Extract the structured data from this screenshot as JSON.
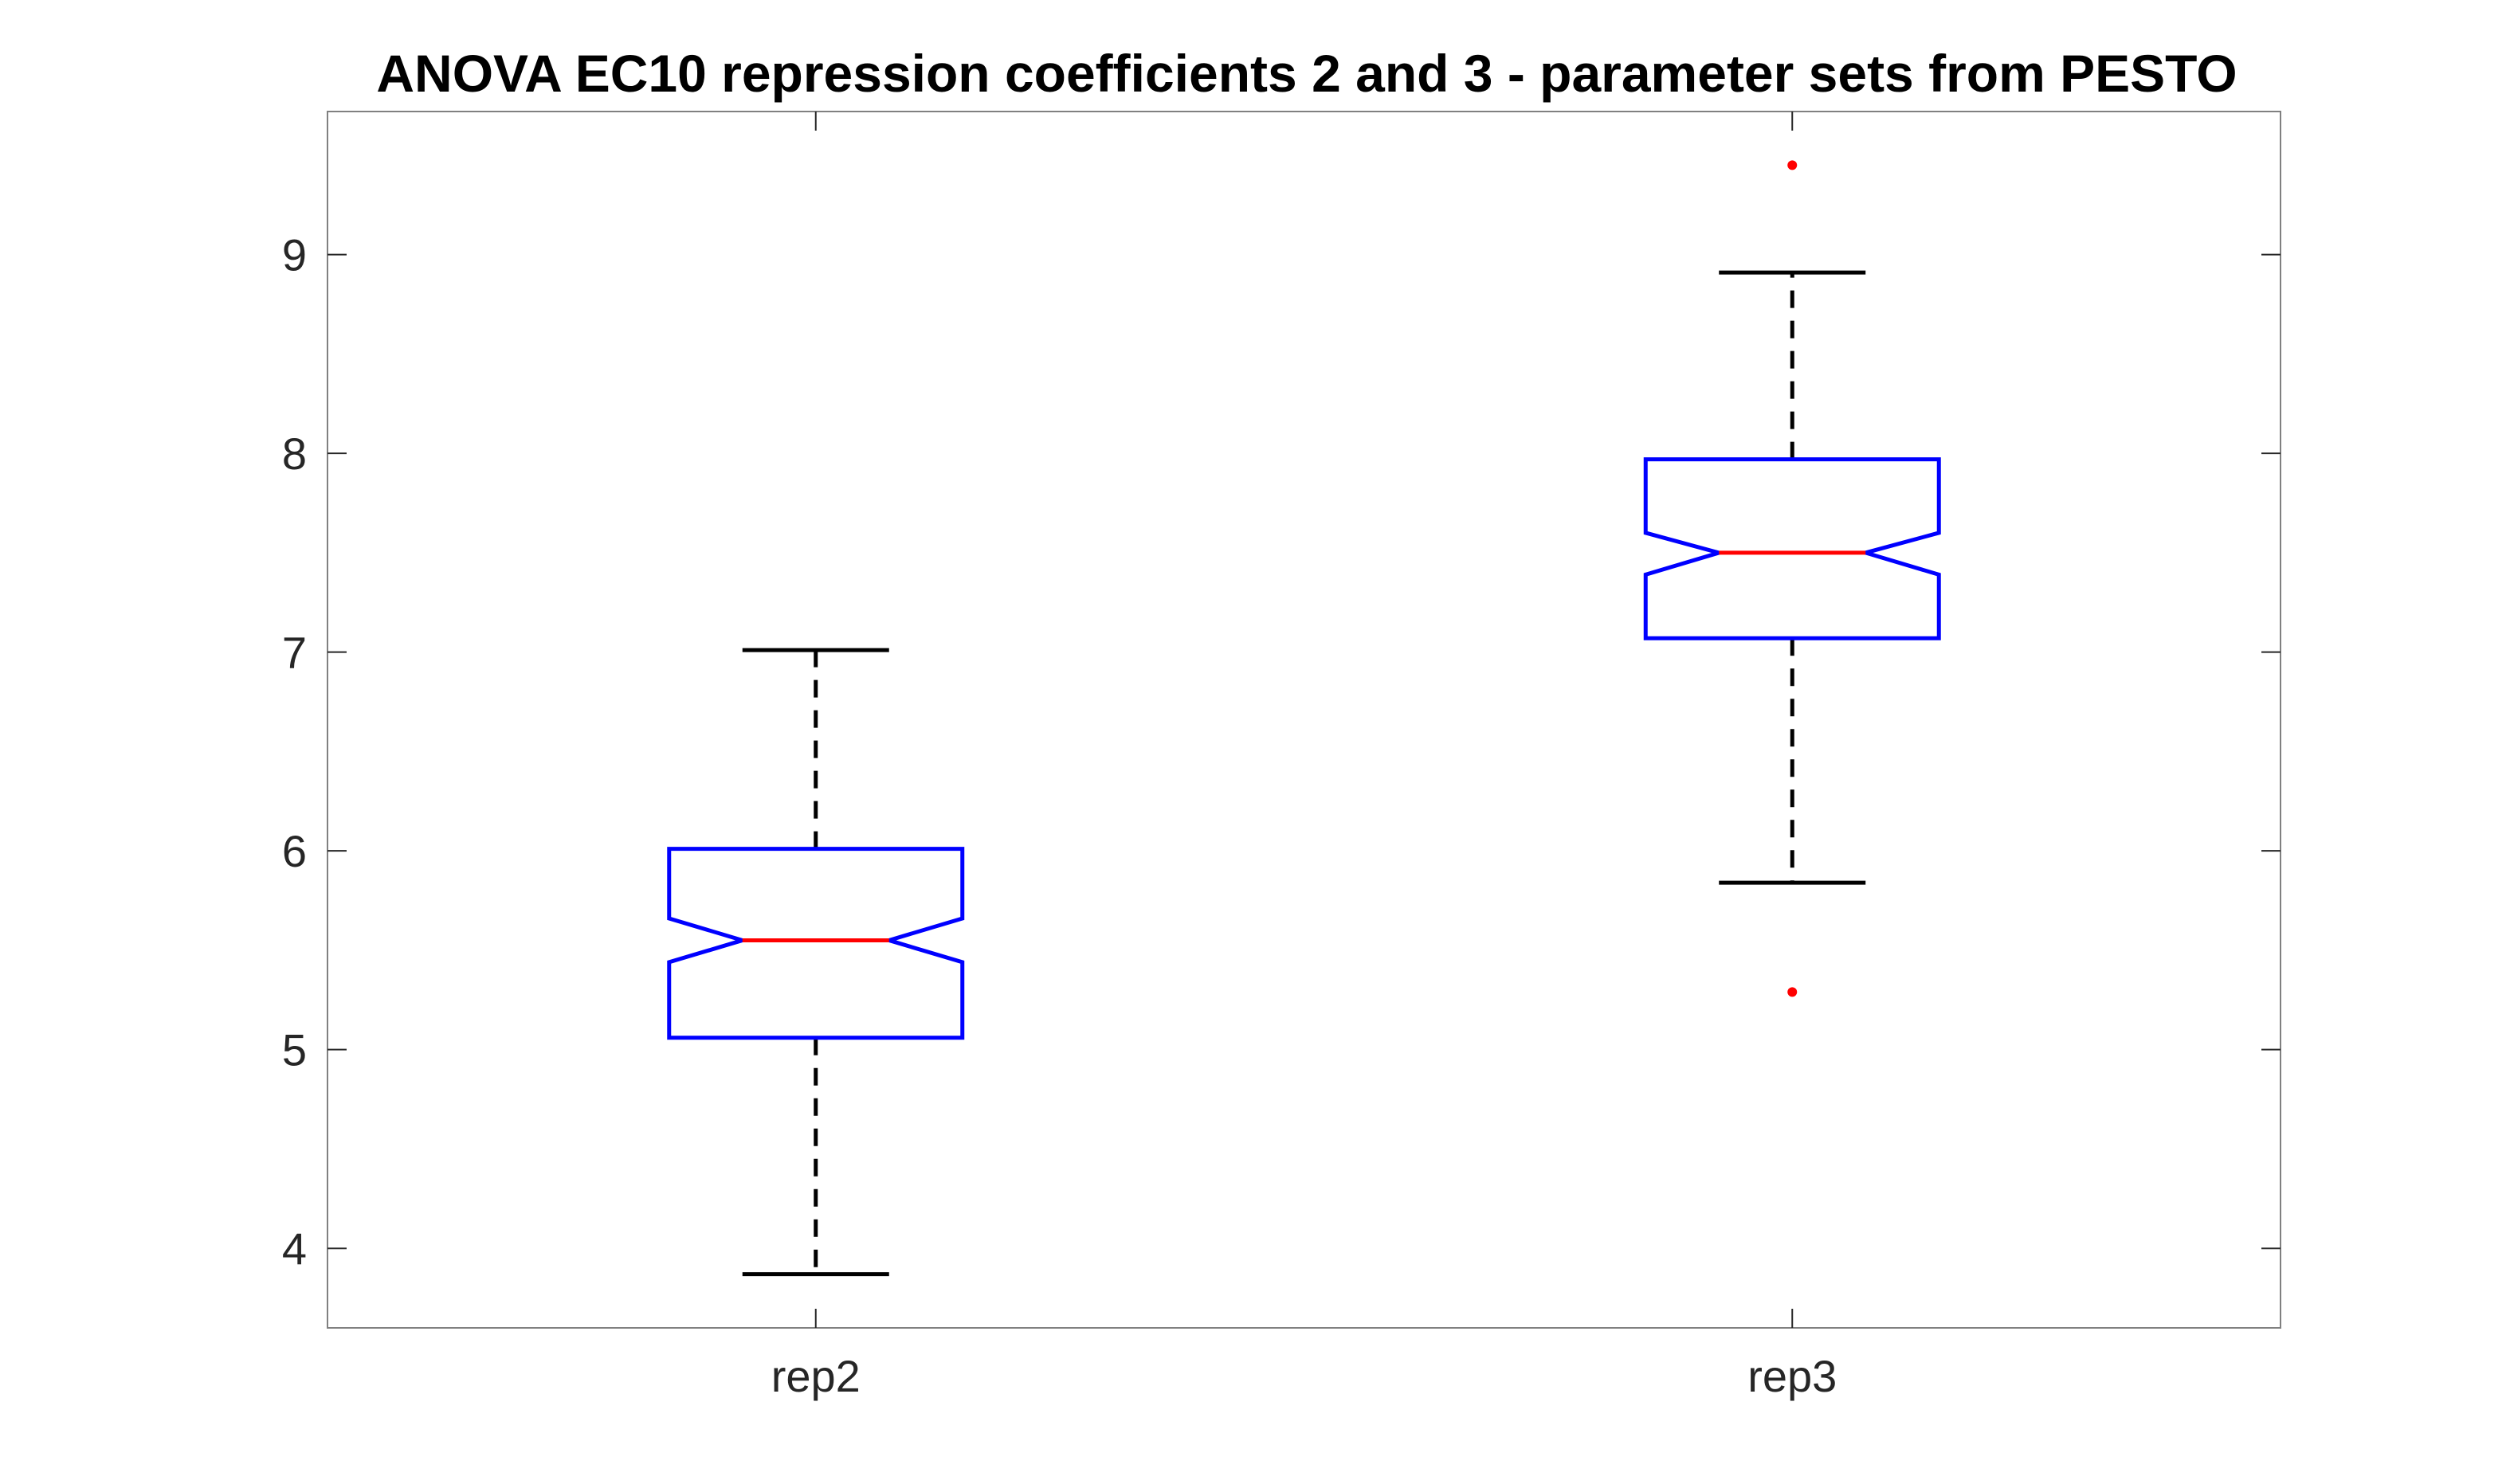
{
  "chart_data": {
    "type": "box",
    "title": "ANOVA EC10 repression coefficients 2 and 3 - parameter sets from PESTO",
    "xlabel": "",
    "ylabel": "",
    "categories": [
      "rep2",
      "rep3"
    ],
    "ylim": [
      3.6,
      9.72
    ],
    "yticks": [
      4,
      5,
      6,
      7,
      8,
      9
    ],
    "notched": true,
    "grid": false,
    "legend": "none",
    "series": [
      {
        "category": "rep2",
        "whisker_low": 3.87,
        "q1": 5.06,
        "median": 5.55,
        "q3": 6.01,
        "whisker_high": 7.01,
        "notch_low": 5.44,
        "notch_high": 5.66,
        "outliers": []
      },
      {
        "category": "rep3",
        "whisker_low": 5.84,
        "q1": 7.07,
        "median": 7.5,
        "q3": 7.97,
        "whisker_high": 8.91,
        "notch_low": 7.39,
        "notch_high": 7.6,
        "outliers": [
          9.45,
          5.29
        ]
      }
    ],
    "colors": {
      "box": "#0000ff",
      "median": "#ff0000",
      "whisker": "#000000",
      "outlier": "#ff0000",
      "axis": "#262626",
      "frame": "#808080"
    }
  }
}
